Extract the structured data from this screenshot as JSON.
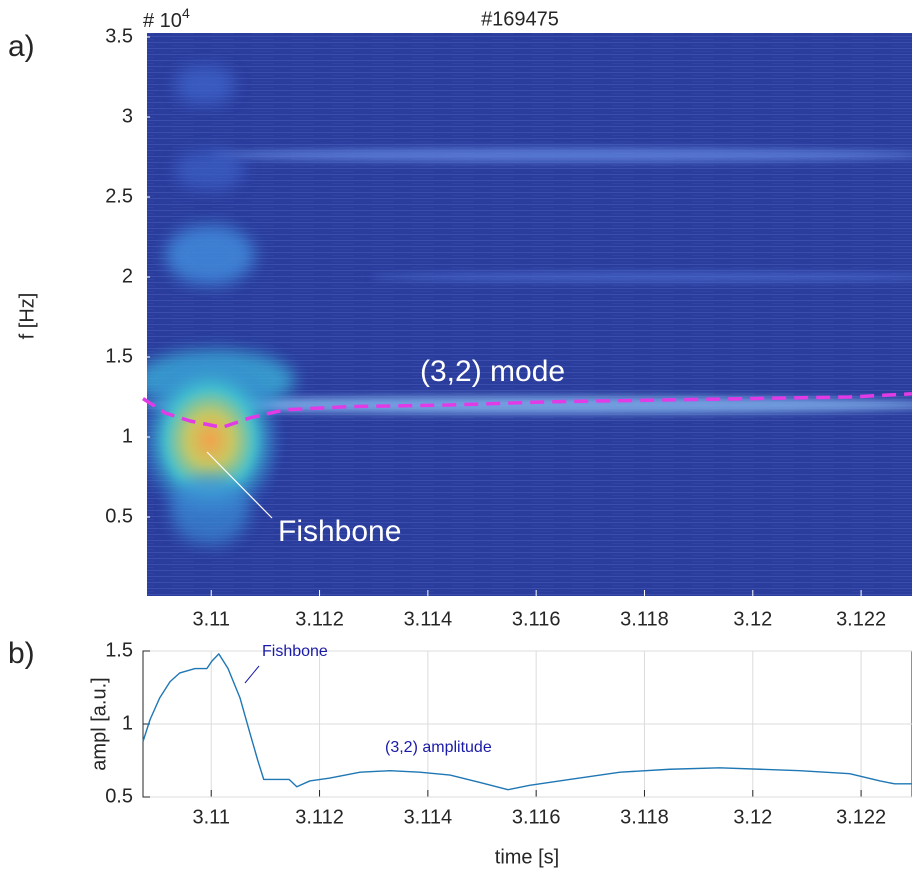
{
  "chart_data": [
    {
      "type": "spectrogram",
      "panel_label": "a)",
      "title": "#169475",
      "y_label": "f [Hz]",
      "y_scale": {
        "base": "# 10",
        "power": "4"
      },
      "xlim": [
        3.10874,
        3.12294
      ],
      "xticks": [
        3.11,
        3.112,
        3.114,
        3.116,
        3.118,
        3.12,
        3.122
      ],
      "ylim": [
        0,
        3.5
      ],
      "yticks": [
        0.5,
        1,
        1.5,
        2,
        2.5,
        3,
        3.5
      ],
      "series": [
        {
          "color": "#e23be6",
          "dashed": true,
          "x": [
            3.10874,
            3.10915,
            3.10961,
            3.1102,
            3.11072,
            3.11136,
            3.11256,
            3.11441,
            3.11625,
            3.1181,
            3.11995,
            3.12179,
            3.12294
          ],
          "values": [
            1.24,
            1.15,
            1.1,
            1.06,
            1.12,
            1.17,
            1.19,
            1.2,
            1.22,
            1.23,
            1.24,
            1.25,
            1.27
          ]
        }
      ],
      "annotations": [
        {
          "text": "(3,2) mode",
          "color": "#ffffff"
        },
        {
          "text": "Fishbone",
          "color": "#ffffff"
        }
      ]
    },
    {
      "type": "line",
      "panel_label": "b)",
      "x_label": "time [s]",
      "y_label": "ampl [a.u.]",
      "grid": true,
      "xlim": [
        3.10874,
        3.12294
      ],
      "xticks": [
        3.11,
        3.112,
        3.114,
        3.116,
        3.118,
        3.12,
        3.122
      ],
      "ylim": [
        0.5,
        1.5
      ],
      "yticks": [
        0.5,
        1,
        1.5
      ],
      "series": [
        {
          "color": "#1f77b4",
          "x": [
            3.10874,
            3.10887,
            3.10905,
            3.10924,
            3.10942,
            3.1097,
            3.10992,
            3.11001,
            3.11014,
            3.11031,
            3.11053,
            3.11072,
            3.11086,
            3.11097,
            3.11118,
            3.11144,
            3.11158,
            3.11182,
            3.11219,
            3.11275,
            3.1133,
            3.11385,
            3.11441,
            3.11496,
            3.11548,
            3.11588,
            3.11662,
            3.11755,
            3.11847,
            3.11939,
            3.12013,
            3.12087,
            3.12179,
            3.12235,
            3.12262,
            3.12294
          ],
          "values": [
            0.88,
            1.03,
            1.18,
            1.29,
            1.35,
            1.38,
            1.38,
            1.43,
            1.48,
            1.38,
            1.18,
            0.93,
            0.75,
            0.62,
            0.62,
            0.62,
            0.57,
            0.61,
            0.63,
            0.67,
            0.68,
            0.67,
            0.65,
            0.6,
            0.55,
            0.58,
            0.62,
            0.67,
            0.69,
            0.7,
            0.69,
            0.68,
            0.66,
            0.61,
            0.59,
            0.59
          ]
        }
      ],
      "annotations": [
        {
          "text": "Fishbone",
          "color": "#1a1aa8"
        },
        {
          "text": "(3,2) amplitude",
          "color": "#1a1aa8"
        }
      ]
    }
  ]
}
